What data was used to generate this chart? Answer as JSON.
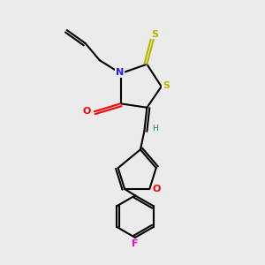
{
  "bg_color": "#ebebeb",
  "bond_color": "#000000",
  "atom_colors": {
    "N": "#2020ff",
    "O": "#ff0000",
    "S_thioxo": "#b8b800",
    "S_ring": "#b8b800",
    "F": "#ff00cc",
    "H": "#008080",
    "C": "#000000"
  },
  "figsize": [
    3.0,
    3.0
  ],
  "dpi": 100,
  "xlim": [
    0,
    10
  ],
  "ylim": [
    0,
    10
  ]
}
